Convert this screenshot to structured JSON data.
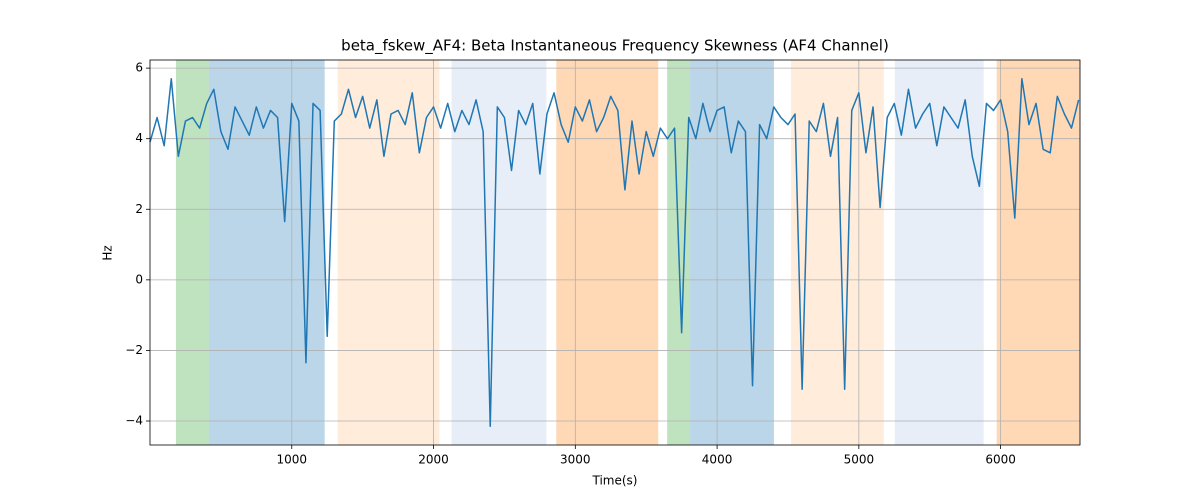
{
  "chart_data": {
    "type": "line",
    "title": "beta_fskew_AF4: Beta Instantaneous Frequency Skewness (AF4 Channel)",
    "x_label": "Time(s)",
    "y_label": "Hz",
    "color": "#1f77b4",
    "grid": true,
    "xlim": [
      0,
      6560
    ],
    "ylim": [
      -4.68,
      6.23
    ],
    "xticks": [
      1000,
      2000,
      3000,
      4000,
      5000,
      6000
    ],
    "yticks": [
      {
        "value": -4,
        "label": "−4"
      },
      {
        "value": -2,
        "label": "−2"
      },
      0,
      2,
      4,
      6
    ],
    "spans": [
      {
        "start": 183,
        "end": 415,
        "color": "#2ca02c",
        "alpha": 0.3
      },
      {
        "start": 415,
        "end": 1232,
        "color": "#1f77b4",
        "alpha": 0.3
      },
      {
        "start": 1324,
        "end": 2042,
        "color": "#ff7f0e",
        "alpha": 0.15
      },
      {
        "start": 2127,
        "end": 2796,
        "color": "#aec7e8",
        "alpha": 0.3
      },
      {
        "start": 2866,
        "end": 3585,
        "color": "#ff7f0e",
        "alpha": 0.3
      },
      {
        "start": 3648,
        "end": 3810,
        "color": "#2ca02c",
        "alpha": 0.3
      },
      {
        "start": 3810,
        "end": 4401,
        "color": "#1f77b4",
        "alpha": 0.3
      },
      {
        "start": 4521,
        "end": 5176,
        "color": "#ff7f0e",
        "alpha": 0.15
      },
      {
        "start": 5254,
        "end": 5880,
        "color": "#aec7e8",
        "alpha": 0.3
      },
      {
        "start": 5972,
        "end": 6560,
        "color": "#ff7f0e",
        "alpha": 0.3
      }
    ],
    "x": [
      0,
      50,
      100,
      150,
      200,
      250,
      300,
      350,
      400,
      450,
      500,
      550,
      600,
      650,
      700,
      750,
      800,
      850,
      900,
      950,
      1000,
      1050,
      1100,
      1150,
      1200,
      1250,
      1300,
      1350,
      1400,
      1450,
      1500,
      1550,
      1600,
      1650,
      1700,
      1750,
      1800,
      1850,
      1900,
      1950,
      2000,
      2050,
      2100,
      2150,
      2200,
      2250,
      2300,
      2350,
      2400,
      2450,
      2500,
      2550,
      2600,
      2650,
      2700,
      2750,
      2800,
      2850,
      2900,
      2950,
      3000,
      3050,
      3100,
      3150,
      3200,
      3250,
      3300,
      3350,
      3400,
      3450,
      3500,
      3550,
      3600,
      3650,
      3700,
      3750,
      3800,
      3850,
      3900,
      3950,
      4000,
      4050,
      4100,
      4150,
      4200,
      4250,
      4300,
      4350,
      4400,
      4450,
      4500,
      4550,
      4600,
      4650,
      4700,
      4750,
      4800,
      4850,
      4900,
      4950,
      5000,
      5050,
      5100,
      5150,
      5200,
      5250,
      5300,
      5350,
      5400,
      5450,
      5500,
      5550,
      5600,
      5650,
      5700,
      5750,
      5800,
      5850,
      5900,
      5950,
      6000,
      6050,
      6100,
      6150,
      6200,
      6250,
      6300,
      6350,
      6400,
      6450,
      6500,
      6550
    ],
    "values": [
      3.9,
      4.6,
      3.8,
      5.7,
      3.5,
      4.5,
      4.6,
      4.3,
      5.0,
      5.4,
      4.2,
      3.7,
      4.9,
      4.5,
      4.1,
      4.9,
      4.3,
      4.8,
      4.6,
      1.65,
      5.0,
      4.5,
      -2.35,
      5.0,
      4.8,
      -1.6,
      4.5,
      4.7,
      5.4,
      4.6,
      5.2,
      4.3,
      5.1,
      3.5,
      4.7,
      4.8,
      4.4,
      5.3,
      3.6,
      4.6,
      4.9,
      4.3,
      5.0,
      4.2,
      4.8,
      4.4,
      5.1,
      4.2,
      -4.15,
      4.9,
      4.6,
      3.1,
      4.8,
      4.4,
      5.0,
      3.0,
      4.7,
      5.3,
      4.4,
      3.9,
      4.9,
      4.5,
      5.1,
      4.2,
      4.6,
      5.2,
      4.8,
      2.55,
      4.5,
      3.0,
      4.2,
      3.5,
      4.3,
      4.0,
      4.3,
      -1.5,
      4.6,
      4.0,
      5.0,
      4.2,
      4.8,
      4.9,
      3.6,
      4.5,
      4.2,
      -3.0,
      4.4,
      4.0,
      4.9,
      4.6,
      4.4,
      4.7,
      -3.1,
      4.5,
      4.2,
      5.0,
      3.5,
      4.6,
      -3.1,
      4.8,
      5.3,
      3.6,
      4.9,
      2.05,
      4.6,
      5.0,
      4.1,
      5.4,
      4.3,
      4.7,
      5.0,
      3.8,
      4.9,
      4.6,
      4.3,
      5.1,
      3.5,
      2.65,
      5.0,
      4.8,
      5.1,
      4.2,
      1.75,
      5.7,
      4.4,
      5.0,
      3.7,
      3.6,
      5.2,
      4.7,
      4.3,
      5.1
    ]
  }
}
